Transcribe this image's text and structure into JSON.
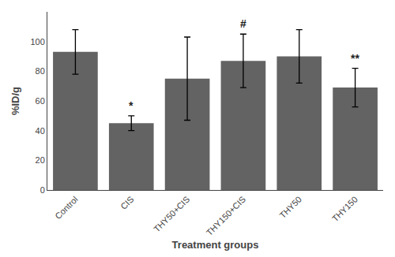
{
  "chart_data": {
    "type": "bar",
    "categories": [
      "Control",
      "CIS",
      "THY50+CIS",
      "THY150+CIS",
      "THY50",
      "THY150"
    ],
    "values": [
      93,
      45,
      75,
      87,
      90,
      69
    ],
    "errors": [
      15,
      5,
      28,
      18,
      18,
      13
    ],
    "color": "#636363",
    "xlabel": "Treatment groups",
    "ylabel": "%ID/g",
    "ylim": [
      0,
      120
    ],
    "yticks": [
      0,
      20,
      40,
      60,
      80,
      100
    ],
    "grid": false,
    "annotations": [
      {
        "text": "*",
        "category": "CIS"
      },
      {
        "text": "#",
        "category": "THY150+CIS"
      },
      {
        "text": "**",
        "category": "THY150"
      }
    ]
  }
}
